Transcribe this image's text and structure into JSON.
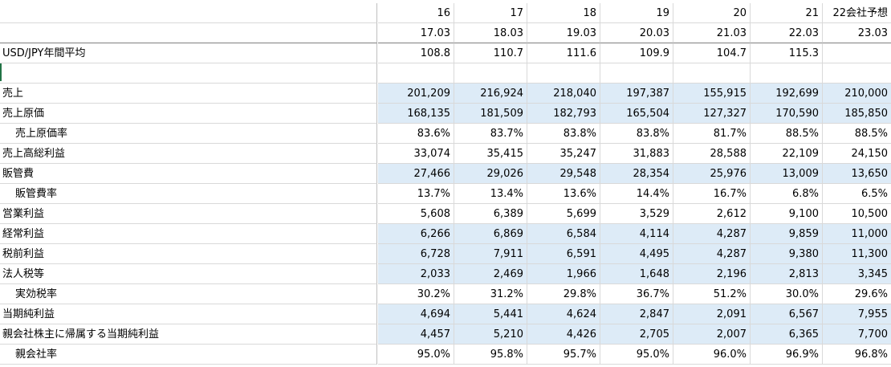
{
  "header": {
    "fiscal_years": [
      "16",
      "17",
      "18",
      "19",
      "20",
      "21",
      "22会社予想"
    ],
    "period_ends": [
      "17.03",
      "18.03",
      "19.03",
      "20.03",
      "21.03",
      "22.03",
      "23.03"
    ]
  },
  "fx": {
    "label": "USD/JPY年間平均",
    "values": [
      "108.8",
      "110.7",
      "111.6",
      "109.9",
      "104.7",
      "115.3",
      ""
    ]
  },
  "rows": [
    {
      "label": "売上",
      "indent": false,
      "highlight": true,
      "values": [
        "201,209",
        "216,924",
        "218,040",
        "197,387",
        "155,915",
        "192,699",
        "210,000"
      ]
    },
    {
      "label": "売上原価",
      "indent": false,
      "highlight": true,
      "values": [
        "168,135",
        "181,509",
        "182,793",
        "165,504",
        "127,327",
        "170,590",
        "185,850"
      ]
    },
    {
      "label": "売上原価率",
      "indent": true,
      "highlight": false,
      "values": [
        "83.6%",
        "83.7%",
        "83.8%",
        "83.8%",
        "81.7%",
        "88.5%",
        "88.5%"
      ]
    },
    {
      "label": "売上高総利益",
      "indent": false,
      "highlight": false,
      "values": [
        "33,074",
        "35,415",
        "35,247",
        "31,883",
        "28,588",
        "22,109",
        "24,150"
      ]
    },
    {
      "label": "販管費",
      "indent": false,
      "highlight": true,
      "values": [
        "27,466",
        "29,026",
        "29,548",
        "28,354",
        "25,976",
        "13,009",
        "13,650"
      ]
    },
    {
      "label": "販管費率",
      "indent": true,
      "highlight": false,
      "values": [
        "13.7%",
        "13.4%",
        "13.6%",
        "14.4%",
        "16.7%",
        "6.8%",
        "6.5%"
      ]
    },
    {
      "label": "営業利益",
      "indent": false,
      "highlight": false,
      "values": [
        "5,608",
        "6,389",
        "5,699",
        "3,529",
        "2,612",
        "9,100",
        "10,500"
      ]
    },
    {
      "label": "経常利益",
      "indent": false,
      "highlight": true,
      "values": [
        "6,266",
        "6,869",
        "6,584",
        "4,114",
        "4,287",
        "9,859",
        "11,000"
      ]
    },
    {
      "label": "税前利益",
      "indent": false,
      "highlight": true,
      "values": [
        "6,728",
        "7,911",
        "6,591",
        "4,495",
        "4,287",
        "9,380",
        "11,300"
      ]
    },
    {
      "label": "法人税等",
      "indent": false,
      "highlight": true,
      "values": [
        "2,033",
        "2,469",
        "1,966",
        "1,648",
        "2,196",
        "2,813",
        "3,345"
      ]
    },
    {
      "label": "実効税率",
      "indent": true,
      "highlight": false,
      "values": [
        "30.2%",
        "31.2%",
        "29.8%",
        "36.7%",
        "51.2%",
        "30.0%",
        "29.6%"
      ]
    },
    {
      "label": "当期純利益",
      "indent": false,
      "highlight": true,
      "values": [
        "4,694",
        "5,441",
        "4,624",
        "2,847",
        "2,091",
        "6,567",
        "7,955"
      ]
    },
    {
      "label": "親会社株主に帰属する当期純利益",
      "indent": false,
      "highlight": true,
      "values": [
        "4,457",
        "5,210",
        "4,426",
        "2,705",
        "2,007",
        "6,365",
        "7,700"
      ]
    },
    {
      "label": "親会社率",
      "indent": true,
      "highlight": false,
      "values": [
        "95.0%",
        "95.8%",
        "95.7%",
        "95.0%",
        "96.0%",
        "96.9%",
        "96.8%"
      ]
    }
  ],
  "colors": {
    "highlight": "#ddebf7",
    "gridline": "#d9d9d9",
    "selection": "#217346"
  }
}
